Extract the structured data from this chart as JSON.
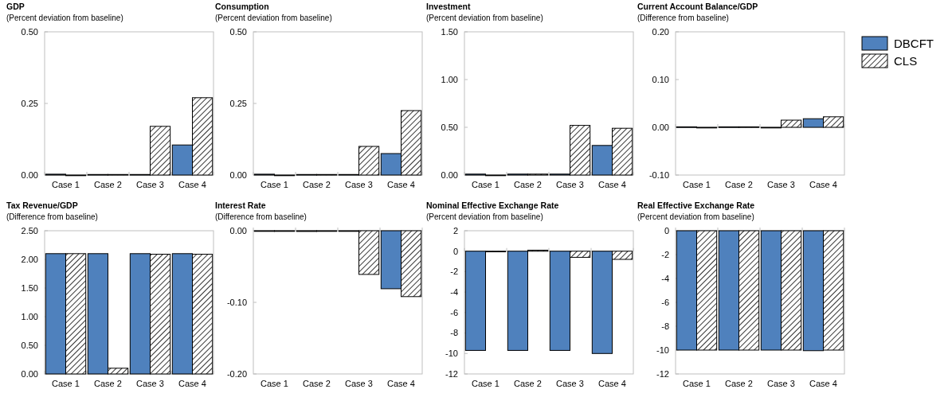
{
  "chart_data": [
    {
      "type": "bar",
      "title": "GDP",
      "subtitle": "(Percent deviation from baseline)",
      "categories": [
        "Case 1",
        "Case 2",
        "Case 3",
        "Case 4"
      ],
      "series": [
        {
          "color": "#4f81bd",
          "values": [
            0.003,
            0.002,
            0.002,
            0.105
          ]
        },
        {
          "color": "#000000",
          "values": [
            0,
            0.002,
            0.17,
            0.27
          ]
        }
      ],
      "ylim": [
        0,
        0.5
      ],
      "yticks": [
        {
          "value": 0,
          "label": "0.00"
        },
        {
          "value": 0.25,
          "label": "0.25"
        },
        {
          "value": 0.5,
          "label": "0.50"
        }
      ]
    },
    {
      "type": "bar",
      "title": "Consumption",
      "subtitle": "(Percent deviation from baseline)",
      "categories": [
        "Case 1",
        "Case 2",
        "Case 3",
        "Case 4"
      ],
      "series": [
        {
          "color": "#4f81bd",
          "values": [
            0.003,
            0.002,
            0.002,
            0.075
          ]
        },
        {
          "color": "#000000",
          "values": [
            0,
            0.002,
            0.1,
            0.225
          ]
        }
      ],
      "ylim": [
        0,
        0.5
      ],
      "yticks": [
        {
          "value": 0,
          "label": "0.00"
        },
        {
          "value": 0.25,
          "label": "0.25"
        },
        {
          "value": 0.5,
          "label": "0.50"
        }
      ]
    },
    {
      "type": "bar",
      "title": "Investment",
      "subtitle": "(Percent deviation from baseline)",
      "categories": [
        "Case 1",
        "Case 2",
        "Case 3",
        "Case 4"
      ],
      "series": [
        {
          "color": "#4f81bd",
          "values": [
            0.01,
            0.01,
            0.01,
            0.31
          ]
        },
        {
          "color": "#000000",
          "values": [
            0,
            0.01,
            0.52,
            0.49
          ]
        }
      ],
      "ylim": [
        0,
        1.5
      ],
      "yticks": [
        {
          "value": 0,
          "label": "0.00"
        },
        {
          "value": 0.5,
          "label": "0.50"
        },
        {
          "value": 1,
          "label": "1.00"
        },
        {
          "value": 1.5,
          "label": "1.50"
        }
      ]
    },
    {
      "type": "bar",
      "title": "Current Account Balance/GDP",
      "subtitle": "(Difference from baseline)",
      "categories": [
        "Case 1",
        "Case 2",
        "Case 3",
        "Case 4"
      ],
      "series": [
        {
          "name": "DBCFT",
          "color": "#4f81bd",
          "values": [
            0.001,
            0.001,
            0,
            0.018
          ]
        },
        {
          "name": "CLS",
          "color": "#000000",
          "values": [
            0,
            0.001,
            0.015,
            0.022
          ]
        }
      ],
      "ylim": [
        -0.1,
        0.2
      ],
      "yticks": [
        {
          "value": -0.1,
          "label": "-0.10"
        },
        {
          "value": 0,
          "label": "0.00"
        },
        {
          "value": 0.1,
          "label": "0.10"
        },
        {
          "value": 0.2,
          "label": "0.20"
        }
      ],
      "legend": "right"
    },
    {
      "type": "bar",
      "title": "Tax Revenue/GDP",
      "subtitle": "(Difference from baseline)",
      "categories": [
        "Case 1",
        "Case 2",
        "Case 3",
        "Case 4"
      ],
      "series": [
        {
          "color": "#4f81bd",
          "values": [
            2.1,
            2.1,
            2.1,
            2.1
          ]
        },
        {
          "color": "#000000",
          "values": [
            2.1,
            0.1,
            2.09,
            2.09
          ]
        }
      ],
      "ylim": [
        0,
        2.5
      ],
      "yticks": [
        {
          "value": 0,
          "label": "0.00"
        },
        {
          "value": 0.5,
          "label": "0.50"
        },
        {
          "value": 1,
          "label": "1.00"
        },
        {
          "value": 1.5,
          "label": "1.50"
        },
        {
          "value": 2,
          "label": "2.00"
        },
        {
          "value": 2.5,
          "label": "2.50"
        }
      ]
    },
    {
      "type": "bar",
      "title": "Interest Rate",
      "subtitle": "(Difference from baseline)",
      "categories": [
        "Case 1",
        "Case 2",
        "Case 3",
        "Case 4"
      ],
      "series": [
        {
          "color": "#4f81bd",
          "values": [
            0,
            -0.001,
            0,
            -0.081
          ]
        },
        {
          "color": "#000000",
          "values": [
            0,
            0,
            -0.061,
            -0.092
          ]
        }
      ],
      "ylim": [
        -0.2,
        0
      ],
      "yticks": [
        {
          "value": -0.2,
          "label": "-0.20"
        },
        {
          "value": -0.1,
          "label": "-0.10"
        },
        {
          "value": 0,
          "label": "0.00"
        }
      ]
    },
    {
      "type": "bar",
      "title": "Nominal Effective Exchange Rate",
      "subtitle": "(Percent deviation from baseline)",
      "categories": [
        "Case 1",
        "Case 2",
        "Case 3",
        "Case 4"
      ],
      "series": [
        {
          "color": "#4f81bd",
          "values": [
            -9.7,
            -9.7,
            -9.7,
            -10
          ]
        },
        {
          "color": "#000000",
          "values": [
            0,
            0.1,
            -0.6,
            -0.8
          ]
        }
      ],
      "ylim": [
        -12,
        2
      ],
      "yticks": [
        -12,
        -10,
        -8,
        -6,
        -4,
        -2,
        0,
        2
      ]
    },
    {
      "type": "bar",
      "title": "Real Effective Exchange Rate",
      "subtitle": "(Percent deviation from baseline)",
      "categories": [
        "Case 1",
        "Case 2",
        "Case 3",
        "Case 4"
      ],
      "series": [
        {
          "color": "#4f81bd",
          "values": [
            -10,
            -10,
            -10,
            -10.05
          ]
        },
        {
          "color": "#000000",
          "values": [
            -10,
            -10,
            -10,
            -10
          ]
        }
      ],
      "ylim": [
        -12,
        0
      ],
      "yticks": [
        -12,
        -10,
        -8,
        -6,
        -4,
        -2,
        0
      ]
    }
  ]
}
